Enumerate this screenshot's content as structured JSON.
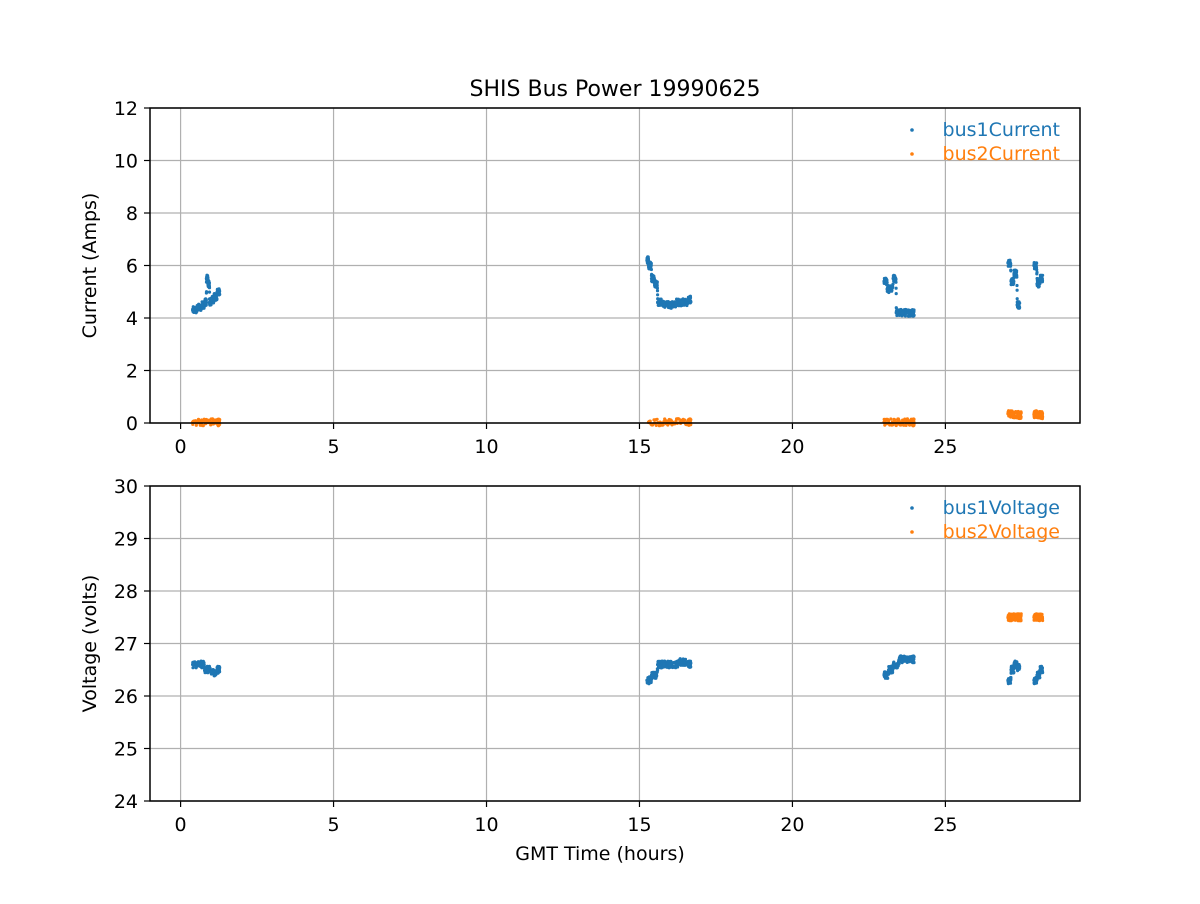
{
  "figure": {
    "title": "SHIS Bus Power 19990625"
  },
  "chart_data": [
    {
      "type": "scatter",
      "title": "SHIS Bus Power 19990625",
      "xlabel": "",
      "ylabel": "Current (Amps)",
      "xlim": [
        -1,
        29.4
      ],
      "ylim": [
        0,
        12
      ],
      "xticks": [
        0,
        5,
        10,
        15,
        20,
        25
      ],
      "yticks": [
        0,
        2,
        4,
        6,
        8,
        10,
        12
      ],
      "grid": true,
      "legend_position": "top-right",
      "series": [
        {
          "name": "bus1Current",
          "color": "#1f77b4",
          "segments": [
            {
              "x": [
                0.4,
                0.55,
                0.7,
                0.8,
                0.85,
                0.9,
                0.95,
                1.0,
                1.1,
                1.2
              ],
              "y": [
                4.3,
                4.4,
                4.5,
                4.6,
                5.5,
                5.3,
                4.6,
                4.7,
                4.8,
                5.0
              ]
            },
            {
              "x": [
                15.25,
                15.3,
                15.4,
                15.5,
                15.6,
                15.8,
                16.0,
                16.2,
                16.4,
                16.6
              ],
              "y": [
                6.2,
                6.0,
                5.5,
                5.3,
                4.6,
                4.5,
                4.5,
                4.6,
                4.6,
                4.7
              ]
            },
            {
              "x": [
                23.0,
                23.1,
                23.3,
                23.4,
                23.6,
                23.8,
                23.9
              ],
              "y": [
                5.4,
                5.1,
                5.5,
                4.2,
                4.2,
                4.2,
                4.2
              ]
            },
            {
              "x": [
                27.05,
                27.15,
                27.25,
                27.35
              ],
              "y": [
                6.1,
                5.4,
                5.7,
                4.5
              ]
            },
            {
              "x": [
                27.9,
                28.0,
                28.1
              ],
              "y": [
                6.0,
                5.3,
                5.5
              ]
            }
          ]
        },
        {
          "name": "bus2Current",
          "color": "#ff7f0e",
          "segments": [
            {
              "x": [
                0.4,
                0.8,
                1.2
              ],
              "y": [
                0.03,
                0.04,
                0.03
              ]
            },
            {
              "x": [
                15.3,
                16.0,
                16.6
              ],
              "y": [
                0.03,
                0.04,
                0.03
              ]
            },
            {
              "x": [
                23.0,
                23.5,
                23.9
              ],
              "y": [
                0.03,
                0.04,
                0.03
              ]
            },
            {
              "x": [
                27.05,
                27.2,
                27.4
              ],
              "y": [
                0.35,
                0.33,
                0.3
              ]
            },
            {
              "x": [
                27.9,
                28.0,
                28.1
              ],
              "y": [
                0.33,
                0.31,
                0.3
              ]
            }
          ]
        }
      ]
    },
    {
      "type": "scatter",
      "title": "",
      "xlabel": "GMT Time (hours)",
      "ylabel": "Voltage (volts)",
      "xlim": [
        -1,
        29.4
      ],
      "ylim": [
        24,
        30
      ],
      "xticks": [
        0,
        5,
        10,
        15,
        20,
        25
      ],
      "yticks": [
        24,
        25,
        26,
        27,
        28,
        29,
        30
      ],
      "grid": true,
      "legend_position": "top-right",
      "series": [
        {
          "name": "bus1Voltage",
          "color": "#1f77b4",
          "segments": [
            {
              "x": [
                0.4,
                0.6,
                0.8,
                1.0,
                1.2
              ],
              "y": [
                26.6,
                26.6,
                26.5,
                26.45,
                26.5
              ]
            },
            {
              "x": [
                15.25,
                15.4,
                15.6,
                15.8,
                16.0,
                16.3,
                16.6
              ],
              "y": [
                26.3,
                26.4,
                26.6,
                26.6,
                26.6,
                26.65,
                26.6
              ]
            },
            {
              "x": [
                23.0,
                23.15,
                23.3,
                23.5,
                23.7,
                23.9
              ],
              "y": [
                26.4,
                26.5,
                26.6,
                26.7,
                26.7,
                26.7
              ]
            },
            {
              "x": [
                27.05,
                27.15,
                27.25,
                27.35
              ],
              "y": [
                26.3,
                26.5,
                26.6,
                26.55
              ]
            },
            {
              "x": [
                27.9,
                28.0,
                28.1
              ],
              "y": [
                26.3,
                26.4,
                26.5
              ]
            }
          ]
        },
        {
          "name": "bus2Voltage",
          "color": "#ff7f0e",
          "segments": [
            {
              "x": [
                27.05,
                27.2,
                27.4
              ],
              "y": [
                27.5,
                27.5,
                27.5
              ]
            },
            {
              "x": [
                27.9,
                28.0,
                28.1
              ],
              "y": [
                27.5,
                27.5,
                27.5
              ]
            }
          ]
        }
      ]
    }
  ]
}
